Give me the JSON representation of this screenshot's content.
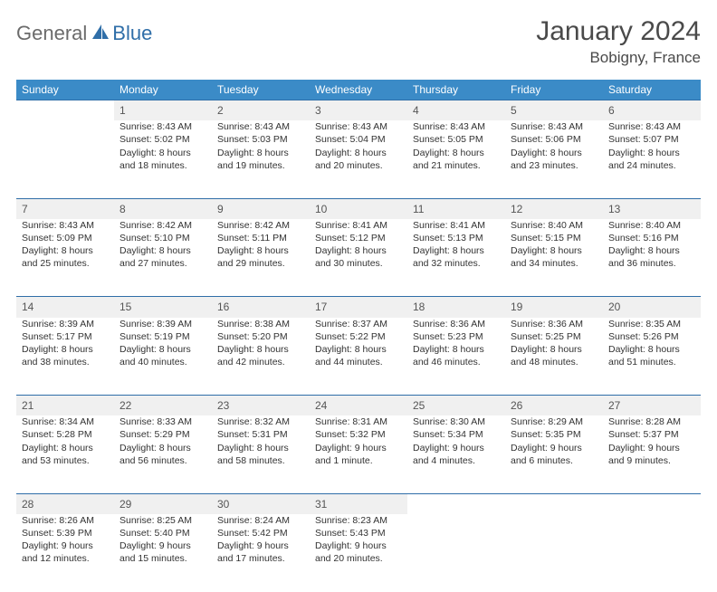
{
  "brand": {
    "name_part1": "General",
    "name_part2": "Blue",
    "text_color": "#6b6b6b",
    "accent_color": "#2f6ea8"
  },
  "title": "January 2024",
  "location": "Bobigny, France",
  "colors": {
    "header_bg": "#3b8bc7",
    "header_text": "#ffffff",
    "daynum_bg": "#f0f0f0",
    "border": "#2f6ea8",
    "body_text": "#333333"
  },
  "day_headers": [
    "Sunday",
    "Monday",
    "Tuesday",
    "Wednesday",
    "Thursday",
    "Friday",
    "Saturday"
  ],
  "weeks": [
    [
      null,
      {
        "n": "1",
        "sr": "8:43 AM",
        "ss": "5:02 PM",
        "dl1": "8 hours",
        "dl2": "and 18 minutes."
      },
      {
        "n": "2",
        "sr": "8:43 AM",
        "ss": "5:03 PM",
        "dl1": "8 hours",
        "dl2": "and 19 minutes."
      },
      {
        "n": "3",
        "sr": "8:43 AM",
        "ss": "5:04 PM",
        "dl1": "8 hours",
        "dl2": "and 20 minutes."
      },
      {
        "n": "4",
        "sr": "8:43 AM",
        "ss": "5:05 PM",
        "dl1": "8 hours",
        "dl2": "and 21 minutes."
      },
      {
        "n": "5",
        "sr": "8:43 AM",
        "ss": "5:06 PM",
        "dl1": "8 hours",
        "dl2": "and 23 minutes."
      },
      {
        "n": "6",
        "sr": "8:43 AM",
        "ss": "5:07 PM",
        "dl1": "8 hours",
        "dl2": "and 24 minutes."
      }
    ],
    [
      {
        "n": "7",
        "sr": "8:43 AM",
        "ss": "5:09 PM",
        "dl1": "8 hours",
        "dl2": "and 25 minutes."
      },
      {
        "n": "8",
        "sr": "8:42 AM",
        "ss": "5:10 PM",
        "dl1": "8 hours",
        "dl2": "and 27 minutes."
      },
      {
        "n": "9",
        "sr": "8:42 AM",
        "ss": "5:11 PM",
        "dl1": "8 hours",
        "dl2": "and 29 minutes."
      },
      {
        "n": "10",
        "sr": "8:41 AM",
        "ss": "5:12 PM",
        "dl1": "8 hours",
        "dl2": "and 30 minutes."
      },
      {
        "n": "11",
        "sr": "8:41 AM",
        "ss": "5:13 PM",
        "dl1": "8 hours",
        "dl2": "and 32 minutes."
      },
      {
        "n": "12",
        "sr": "8:40 AM",
        "ss": "5:15 PM",
        "dl1": "8 hours",
        "dl2": "and 34 minutes."
      },
      {
        "n": "13",
        "sr": "8:40 AM",
        "ss": "5:16 PM",
        "dl1": "8 hours",
        "dl2": "and 36 minutes."
      }
    ],
    [
      {
        "n": "14",
        "sr": "8:39 AM",
        "ss": "5:17 PM",
        "dl1": "8 hours",
        "dl2": "and 38 minutes."
      },
      {
        "n": "15",
        "sr": "8:39 AM",
        "ss": "5:19 PM",
        "dl1": "8 hours",
        "dl2": "and 40 minutes."
      },
      {
        "n": "16",
        "sr": "8:38 AM",
        "ss": "5:20 PM",
        "dl1": "8 hours",
        "dl2": "and 42 minutes."
      },
      {
        "n": "17",
        "sr": "8:37 AM",
        "ss": "5:22 PM",
        "dl1": "8 hours",
        "dl2": "and 44 minutes."
      },
      {
        "n": "18",
        "sr": "8:36 AM",
        "ss": "5:23 PM",
        "dl1": "8 hours",
        "dl2": "and 46 minutes."
      },
      {
        "n": "19",
        "sr": "8:36 AM",
        "ss": "5:25 PM",
        "dl1": "8 hours",
        "dl2": "and 48 minutes."
      },
      {
        "n": "20",
        "sr": "8:35 AM",
        "ss": "5:26 PM",
        "dl1": "8 hours",
        "dl2": "and 51 minutes."
      }
    ],
    [
      {
        "n": "21",
        "sr": "8:34 AM",
        "ss": "5:28 PM",
        "dl1": "8 hours",
        "dl2": "and 53 minutes."
      },
      {
        "n": "22",
        "sr": "8:33 AM",
        "ss": "5:29 PM",
        "dl1": "8 hours",
        "dl2": "and 56 minutes."
      },
      {
        "n": "23",
        "sr": "8:32 AM",
        "ss": "5:31 PM",
        "dl1": "8 hours",
        "dl2": "and 58 minutes."
      },
      {
        "n": "24",
        "sr": "8:31 AM",
        "ss": "5:32 PM",
        "dl1": "9 hours",
        "dl2": "and 1 minute."
      },
      {
        "n": "25",
        "sr": "8:30 AM",
        "ss": "5:34 PM",
        "dl1": "9 hours",
        "dl2": "and 4 minutes."
      },
      {
        "n": "26",
        "sr": "8:29 AM",
        "ss": "5:35 PM",
        "dl1": "9 hours",
        "dl2": "and 6 minutes."
      },
      {
        "n": "27",
        "sr": "8:28 AM",
        "ss": "5:37 PM",
        "dl1": "9 hours",
        "dl2": "and 9 minutes."
      }
    ],
    [
      {
        "n": "28",
        "sr": "8:26 AM",
        "ss": "5:39 PM",
        "dl1": "9 hours",
        "dl2": "and 12 minutes."
      },
      {
        "n": "29",
        "sr": "8:25 AM",
        "ss": "5:40 PM",
        "dl1": "9 hours",
        "dl2": "and 15 minutes."
      },
      {
        "n": "30",
        "sr": "8:24 AM",
        "ss": "5:42 PM",
        "dl1": "9 hours",
        "dl2": "and 17 minutes."
      },
      {
        "n": "31",
        "sr": "8:23 AM",
        "ss": "5:43 PM",
        "dl1": "9 hours",
        "dl2": "and 20 minutes."
      },
      null,
      null,
      null
    ]
  ],
  "labels": {
    "sunrise": "Sunrise:",
    "sunset": "Sunset:",
    "daylight": "Daylight:"
  }
}
